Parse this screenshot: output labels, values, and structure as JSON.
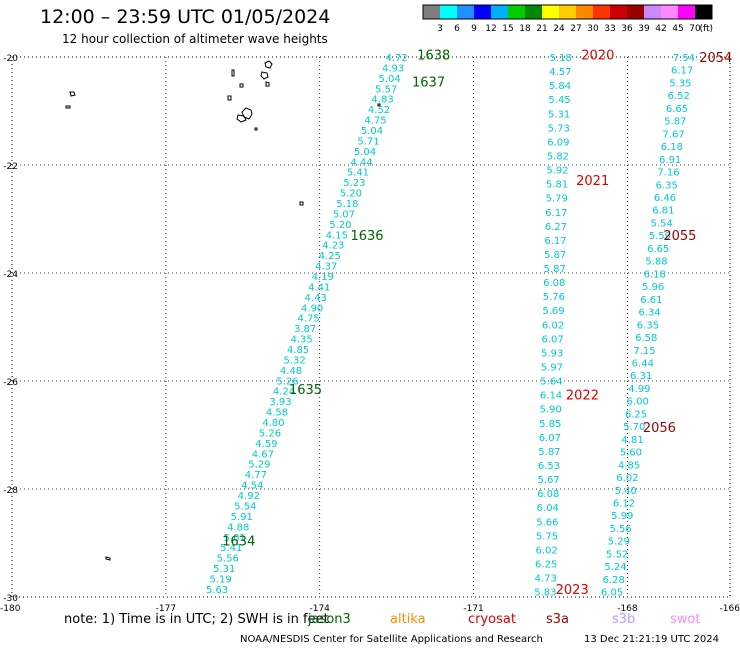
{
  "header": {
    "title": "12:00 – 23:59 UTC 01/05/2024",
    "subtitle": "12 hour collection of altimeter wave heights"
  },
  "colorbar": {
    "unit": "(ft)",
    "ticks": [
      "3",
      "6",
      "9",
      "12",
      "15",
      "18",
      "21",
      "24",
      "27",
      "30",
      "33",
      "36",
      "39",
      "42",
      "45",
      "70"
    ],
    "colors": [
      "#7f7f7f",
      "#00ffff",
      "#1e90ff",
      "#0000ff",
      "#00b0ff",
      "#00cc00",
      "#008800",
      "#ffff00",
      "#ffcc00",
      "#ff8800",
      "#ff3300",
      "#cc0000",
      "#990000",
      "#cc88ff",
      "#ff88ff",
      "#ff00ff",
      "#000000"
    ]
  },
  "footer": {
    "note": "note:  1) Time is in UTC; 2) SWH is in feet",
    "missions": [
      {
        "name": "jason3",
        "color": "#006600"
      },
      {
        "name": "altika",
        "color": "#ff8c00"
      },
      {
        "name": "cryosat",
        "color": "#dd0000"
      },
      {
        "name": "s3a",
        "color": "#990000"
      },
      {
        "name": "s3b",
        "color": "#bb99ff"
      },
      {
        "name": "swot",
        "color": "#ff88ff"
      }
    ],
    "credit": "NOAA/NESDIS Center for Satellite Applications and Research",
    "stamp": "13 Dec 21:21:19 UTC 2024"
  },
  "chart_data": {
    "type": "scatter",
    "title": "12:00 – 23:59 UTC 01/05/2024",
    "subtitle": "12 hour collection of altimeter wave heights",
    "xlim": [
      -180,
      -166
    ],
    "ylim": [
      -30,
      -20
    ],
    "xticks": [
      -180,
      -177,
      -174,
      -171,
      -168,
      -166
    ],
    "yticks": [
      -20,
      -22,
      -24,
      -26,
      -28,
      -30
    ],
    "grid": true,
    "wave_color": "#00cccc",
    "tracks": [
      {
        "mission": "jason3",
        "color": "#006600",
        "start": [
          -176.0,
          -29.85
        ],
        "end": [
          -172.5,
          -20.0
        ],
        "count": 78,
        "values": [
          5.63,
          5.19,
          5.31,
          5.56,
          5.41,
          5.01,
          4.88,
          5.91,
          5.54,
          4.92,
          4.54,
          4.77,
          5.29,
          4.67,
          4.59,
          5.26,
          4.8,
          4.58,
          3.93,
          4.24,
          5.26,
          4.48,
          5.32,
          4.85,
          4.35,
          3.87,
          4.75,
          4.9,
          4.43,
          4.41,
          4.19,
          4.37,
          4.25,
          4.23,
          4.15,
          5.2,
          5.07,
          5.18,
          5.2,
          5.23,
          5.41,
          4.44,
          5.04,
          5.71,
          5.04,
          4.75,
          4.52,
          4.83,
          5.57,
          5.04,
          4.93,
          4.72
        ]
      },
      {
        "mission": "cryosat",
        "color": "#dd0000",
        "start": [
          -169.6,
          -29.9
        ],
        "end": [
          -169.3,
          -20.0
        ],
        "count": 88,
        "values": [
          5.83,
          4.73,
          6.25,
          6.02,
          5.75,
          5.66,
          6.04,
          6.08,
          5.67,
          6.53,
          5.87,
          6.07,
          5.85,
          5.9,
          6.14,
          5.64,
          5.97,
          5.93,
          6.07,
          6.02,
          5.69,
          5.76,
          6.08,
          5.87,
          5.87,
          6.17,
          6.27,
          6.17,
          5.79,
          5.81,
          5.92,
          5.82,
          6.09,
          5.73,
          5.31,
          5.45,
          5.84,
          4.57,
          5.18
        ]
      },
      {
        "mission": "s3a",
        "color": "#990000",
        "start": [
          -168.3,
          -29.9
        ],
        "end": [
          -166.9,
          -20.0
        ],
        "count": 96,
        "values": [
          6.05,
          6.28,
          5.24,
          5.52,
          5.29,
          5.56,
          5.99,
          6.12,
          5.4,
          6.02,
          4.85,
          5.6,
          4.81,
          5.7,
          6.25,
          6.0,
          4.99,
          6.31,
          6.44,
          7.15,
          6.58,
          6.35,
          6.34,
          6.61,
          5.96,
          6.18,
          5.88,
          6.65,
          5.59,
          5.54,
          6.81,
          6.46,
          6.35,
          7.16,
          6.91,
          6.18,
          7.67,
          5.87,
          6.65,
          6.52,
          5.35,
          6.17,
          7.54
        ]
      }
    ],
    "annotations": [
      {
        "text": "1638",
        "color": "#006600",
        "lon": -172.1,
        "lat": -19.95
      },
      {
        "text": "1637",
        "color": "#006600",
        "lon": -172.2,
        "lat": -20.45
      },
      {
        "text": "1636",
        "color": "#006600",
        "lon": -173.4,
        "lat": -23.3
      },
      {
        "text": "1635",
        "color": "#006600",
        "lon": -174.6,
        "lat": -26.15
      },
      {
        "text": "1634",
        "color": "#006600",
        "lon": -175.9,
        "lat": -28.95
      },
      {
        "text": "2020",
        "color": "#dd0000",
        "lon": -168.9,
        "lat": -19.95
      },
      {
        "text": "2021",
        "color": "#dd0000",
        "lon": -169.0,
        "lat": -22.28
      },
      {
        "text": "2022",
        "color": "#dd0000",
        "lon": -169.2,
        "lat": -26.25
      },
      {
        "text": "2023",
        "color": "#dd0000",
        "lon": -169.4,
        "lat": -29.85
      },
      {
        "text": "2054",
        "color": "#990000",
        "lon": -166.6,
        "lat": -20.0
      },
      {
        "text": "2055",
        "color": "#990000",
        "lon": -167.3,
        "lat": -23.3
      },
      {
        "text": "2056",
        "color": "#990000",
        "lon": -167.7,
        "lat": -26.85
      }
    ]
  }
}
